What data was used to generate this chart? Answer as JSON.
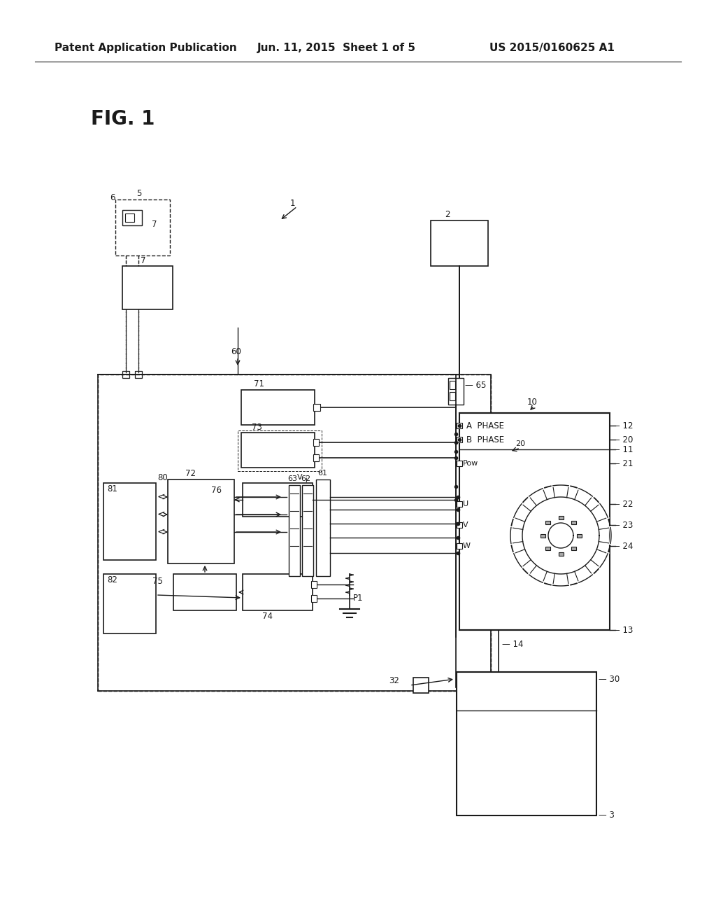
{
  "header_left": "Patent Application Publication",
  "header_center": "Jun. 11, 2015  Sheet 1 of 5",
  "header_right": "US 2015/0160625 A1",
  "fig_label": "FIG. 1",
  "bg_color": "#ffffff",
  "line_color": "#1a1a1a"
}
